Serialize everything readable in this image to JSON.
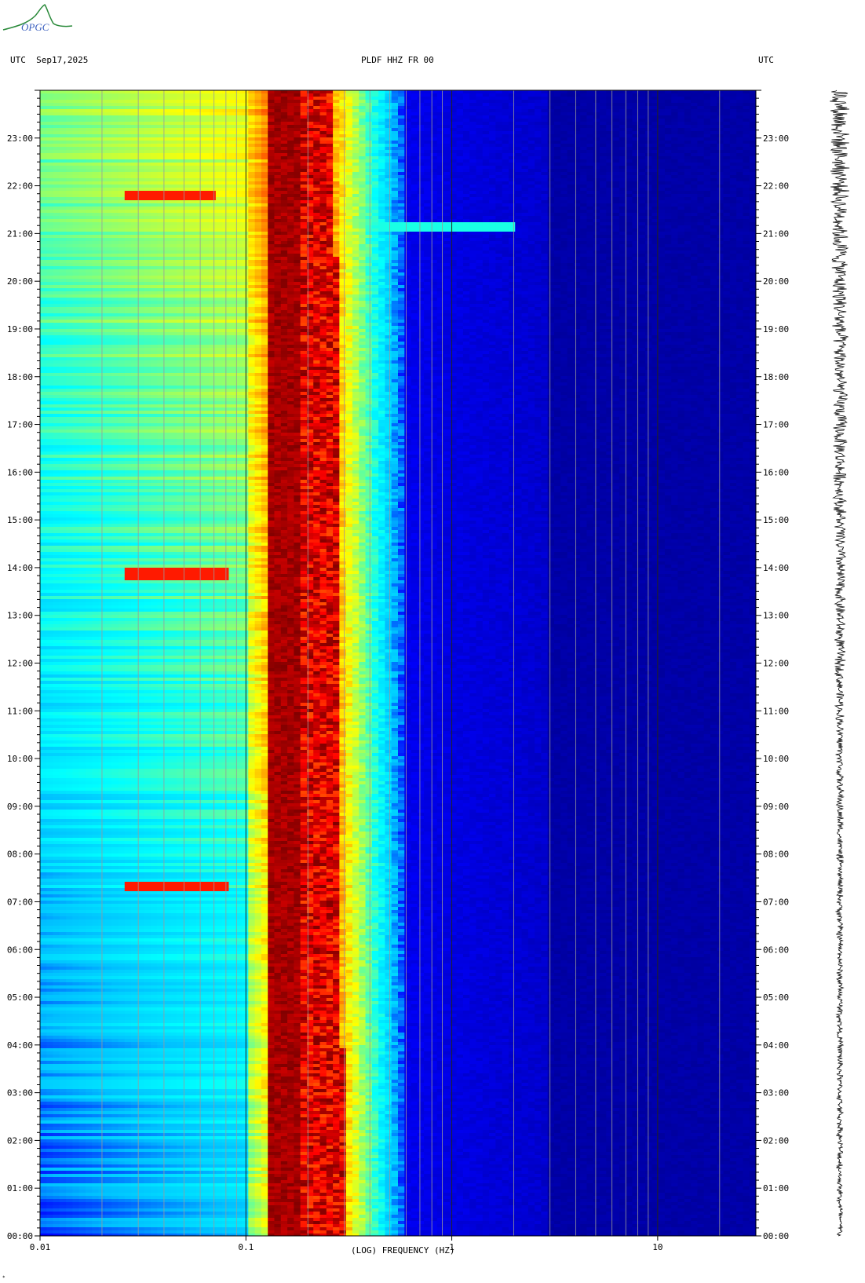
{
  "header": {
    "left": "UTC  Sep17,2025",
    "center": "PLDF HHZ FR 00",
    "right": "UTC"
  },
  "logo": {
    "text": "OPGC",
    "color": "#2a8a3a"
  },
  "chart_data": {
    "type": "heatmap",
    "xlabel": "(LOG) FREQUENCY (HZ)",
    "x_scale": "log",
    "xlim": [
      0.01,
      30
    ],
    "x_ticks": [
      {
        "value": 0.01,
        "label": "0.01"
      },
      {
        "value": 0.1,
        "label": "0.1"
      },
      {
        "value": 1,
        "label": "1"
      },
      {
        "value": 10,
        "label": "10"
      }
    ],
    "y_ticks": [
      "00:00",
      "01:00",
      "02:00",
      "03:00",
      "04:00",
      "05:00",
      "06:00",
      "07:00",
      "08:00",
      "09:00",
      "10:00",
      "11:00",
      "12:00",
      "13:00",
      "14:00",
      "15:00",
      "16:00",
      "17:00",
      "18:00",
      "19:00",
      "20:00",
      "21:00",
      "22:00",
      "23:00"
    ],
    "ylim_hours": [
      0,
      24
    ],
    "colormap": [
      "#00008b",
      "#0000ff",
      "#00bfff",
      "#00ffff",
      "#7fff7f",
      "#ffff00",
      "#ff8000",
      "#ff0000",
      "#800000"
    ],
    "features": [
      {
        "desc": "microseism peak band",
        "freq_range": [
          0.13,
          0.3
        ]
      },
      {
        "desc": "strong event band",
        "time_hours": 21.8,
        "freq_range": [
          0.025,
          0.07
        ]
      },
      {
        "desc": "event band",
        "time_hours": 13.9,
        "freq_range": [
          0.025,
          0.08
        ]
      },
      {
        "desc": "event band",
        "time_hours": 7.35,
        "freq_range": [
          0.025,
          0.08
        ]
      },
      {
        "desc": "narrow event",
        "time_hours": 21.15,
        "freq_range": [
          0.3,
          2.0
        ]
      }
    ]
  },
  "corner_mark": "*"
}
